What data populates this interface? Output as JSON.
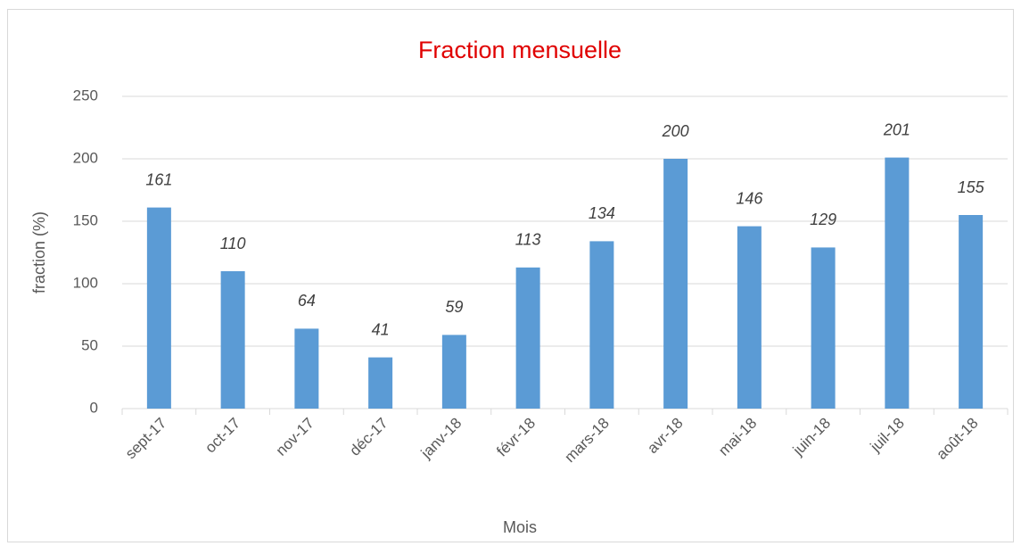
{
  "chart_data": {
    "type": "bar",
    "title": "Fraction mensuelle",
    "title_color": "#e00000",
    "x_label": "Mois",
    "y_label": "fraction (%)",
    "categories": [
      "sept-17",
      "oct-17",
      "nov-17",
      "déc-17",
      "janv-18",
      "févr-18",
      "mars-18",
      "avr-18",
      "mai-18",
      "juin-18",
      "juil-18",
      "août-18"
    ],
    "values": [
      161,
      110,
      64,
      41,
      59,
      113,
      134,
      200,
      146,
      129,
      201,
      155
    ],
    "color": "#5b9bd5",
    "ylim": [
      0,
      250
    ],
    "yticks": [
      0,
      50,
      100,
      150,
      200,
      250
    ],
    "grid": true
  }
}
